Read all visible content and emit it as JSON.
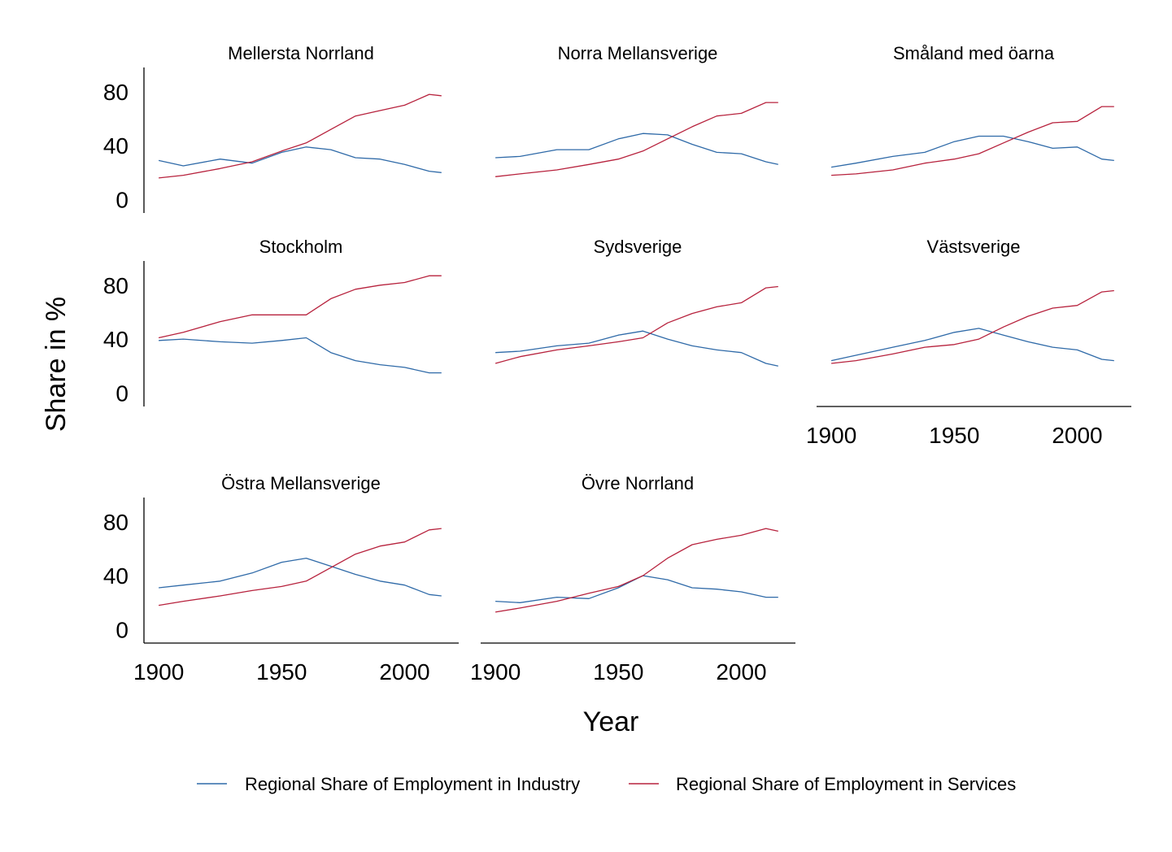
{
  "chart_data": {
    "type": "line",
    "ylabel": "Share in %",
    "xlabel": "Year",
    "x": [
      1900,
      1910,
      1925,
      1938,
      1950,
      1960,
      1970,
      1980,
      1990,
      2000,
      2010,
      2015
    ],
    "xticks": [
      1900,
      1950,
      2000
    ],
    "yticks": [
      0,
      40,
      80
    ],
    "xlim": [
      1894,
      2022
    ],
    "ylim": [
      -10,
      98
    ],
    "grid": false,
    "legend_position": "bottom",
    "colors": {
      "industry": "#2f6aa8",
      "services": "#b7223d"
    },
    "legend": [
      {
        "key": "industry",
        "label": "Regional Share of Employment in Industry"
      },
      {
        "key": "services",
        "label": "Regional Share of Employment in Services"
      }
    ],
    "panels": [
      {
        "title": "Mellersta Norrland",
        "industry": [
          29,
          25,
          30,
          27,
          35,
          39,
          37,
          31,
          30,
          26,
          21,
          20
        ],
        "services": [
          16,
          18,
          23,
          28,
          36,
          42,
          52,
          62,
          66,
          70,
          78,
          77
        ]
      },
      {
        "title": "Norra Mellansverige",
        "industry": [
          31,
          32,
          37,
          37,
          45,
          49,
          48,
          41,
          35,
          34,
          28,
          26
        ],
        "services": [
          17,
          19,
          22,
          26,
          30,
          36,
          45,
          54,
          62,
          64,
          72,
          72
        ]
      },
      {
        "title": "Småland med öarna",
        "industry": [
          24,
          27,
          32,
          35,
          43,
          47,
          47,
          43,
          38,
          39,
          30,
          29
        ],
        "services": [
          18,
          19,
          22,
          27,
          30,
          34,
          42,
          50,
          57,
          58,
          69,
          69
        ]
      },
      {
        "title": "Stockholm",
        "industry": [
          39,
          40,
          38,
          37,
          39,
          41,
          30,
          24,
          21,
          19,
          15,
          15
        ],
        "services": [
          41,
          45,
          53,
          58,
          58,
          58,
          70,
          77,
          80,
          82,
          87,
          87
        ]
      },
      {
        "title": "Sydsverige",
        "industry": [
          30,
          31,
          35,
          37,
          43,
          46,
          40,
          35,
          32,
          30,
          22,
          20
        ],
        "services": [
          22,
          27,
          32,
          35,
          38,
          41,
          52,
          59,
          64,
          67,
          78,
          79
        ]
      },
      {
        "title": "Västsverige",
        "industry": [
          24,
          28,
          34,
          39,
          45,
          48,
          43,
          38,
          34,
          32,
          25,
          24
        ],
        "services": [
          22,
          24,
          29,
          34,
          36,
          40,
          49,
          57,
          63,
          65,
          75,
          76
        ]
      },
      {
        "title": "Östra Mellansverige",
        "industry": [
          31,
          33,
          36,
          42,
          50,
          53,
          47,
          41,
          36,
          33,
          26,
          25
        ],
        "services": [
          18,
          21,
          25,
          29,
          32,
          36,
          46,
          56,
          62,
          65,
          74,
          75
        ]
      },
      {
        "title": "Övre Norrland",
        "industry": [
          21,
          20,
          24,
          23,
          31,
          40,
          37,
          31,
          30,
          28,
          24,
          24
        ],
        "services": [
          13,
          16,
          21,
          27,
          32,
          40,
          53,
          63,
          67,
          70,
          75,
          73
        ]
      }
    ]
  }
}
